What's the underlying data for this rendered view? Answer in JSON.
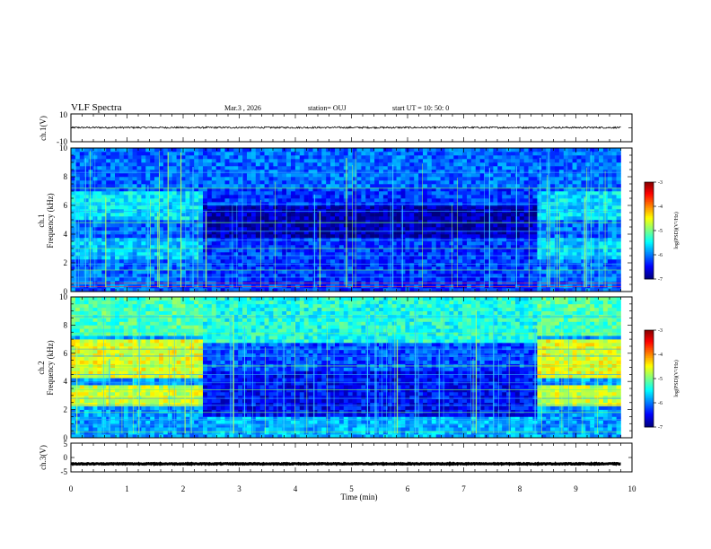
{
  "header": {
    "title": "VLF Spectra",
    "date": "Mar.3  , 2026",
    "station": "station= OUJ",
    "start": "start  UT  =   10: 50: 0"
  },
  "chart_data": [
    {
      "type": "line",
      "panel": "ch1-waveform",
      "ylabel": "ch.1(V)",
      "ylim": [
        -10,
        10
      ],
      "yticks": [
        "10",
        "-10"
      ],
      "xlim": [
        0,
        10
      ],
      "level": 0.2,
      "noise_amplitude": 0.6
    },
    {
      "type": "heatmap",
      "panel": "ch1-spectrogram",
      "ylabel_top": "ch.1",
      "ylabel": "Frequency  (kHz)",
      "ylim": [
        0,
        10
      ],
      "yticks": [
        "0",
        "2",
        "4",
        "6",
        "8",
        "10"
      ],
      "xlim": [
        0,
        10
      ],
      "data_end_min": 9.8,
      "colorbar": {
        "label": "log(PSD)(V²/Hz)",
        "range": [
          -7,
          -3
        ],
        "ticks": [
          "-3",
          "-4",
          "-5",
          "-6",
          "-7"
        ]
      },
      "quiet_interval_min": [
        2.3,
        8.25
      ],
      "segments": [
        {
          "from_min": 0.0,
          "to_min": 2.3,
          "state": "active"
        },
        {
          "from_min": 2.3,
          "to_min": 8.25,
          "state": "quiet"
        },
        {
          "from_min": 8.25,
          "to_min": 9.8,
          "state": "active"
        }
      ]
    },
    {
      "type": "heatmap",
      "panel": "ch2-spectrogram",
      "ylabel_top": "ch.2",
      "ylabel": "Frequency  (kHz)",
      "ylim": [
        0,
        10
      ],
      "yticks": [
        "0",
        "2",
        "4",
        "6",
        "8",
        "10"
      ],
      "xlim": [
        0,
        10
      ],
      "data_end_min": 9.8,
      "colorbar": {
        "label": "log(PSD)(V²/Hz)",
        "range": [
          -7,
          -3
        ],
        "ticks": [
          "-3",
          "-4",
          "-5",
          "-6",
          "-7"
        ]
      },
      "quiet_interval_min": [
        2.3,
        8.25
      ],
      "segments": [
        {
          "from_min": 0.0,
          "to_min": 2.3,
          "state": "active"
        },
        {
          "from_min": 2.3,
          "to_min": 8.25,
          "state": "quiet"
        },
        {
          "from_min": 8.25,
          "to_min": 9.8,
          "state": "active"
        }
      ]
    },
    {
      "type": "line",
      "panel": "ch3-waveform",
      "ylabel": "ch.3(V)",
      "ylim": [
        -5,
        5
      ],
      "yticks": [
        "5",
        "0",
        "-5"
      ],
      "xlim": [
        0,
        10
      ],
      "level": -2.2,
      "noise_amplitude": 0.15
    }
  ],
  "xaxis": {
    "label": "Time  (min)",
    "ticks": [
      "0",
      "1",
      "2",
      "3",
      "4",
      "5",
      "6",
      "7",
      "8",
      "9",
      "10"
    ]
  }
}
